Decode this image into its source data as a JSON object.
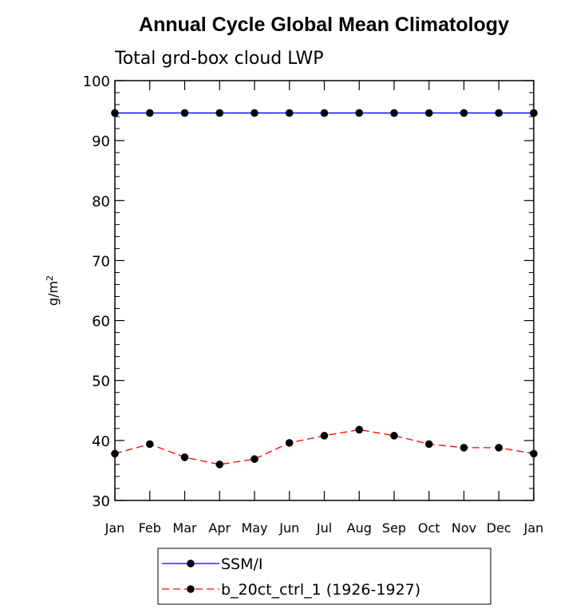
{
  "chart_data": {
    "type": "line",
    "title": "Annual Cycle Global Mean Climatology",
    "subtitle": "Total grd-box cloud LWP",
    "ylabel": "g/m",
    "ylabel_superscript": "2",
    "ylim": [
      30,
      100
    ],
    "y_ticks": [
      "30",
      "40",
      "50",
      "60",
      "70",
      "80",
      "90",
      "100"
    ],
    "categories": [
      "Jan",
      "Feb",
      "Mar",
      "Apr",
      "May",
      "Jun",
      "Jul",
      "Aug",
      "Sep",
      "Oct",
      "Nov",
      "Dec",
      "Jan"
    ],
    "series": [
      {
        "name": "SSM/I",
        "color": "#0000ff",
        "line_style": "solid",
        "values": [
          94.6,
          94.6,
          94.6,
          94.6,
          94.6,
          94.6,
          94.6,
          94.6,
          94.6,
          94.6,
          94.6,
          94.6,
          94.6
        ]
      },
      {
        "name": "b_20ct_ctrl_1 (1926-1927)",
        "color": "#ff0000",
        "line_style": "dashed",
        "values": [
          37.8,
          39.4,
          37.2,
          36.0,
          36.9,
          39.6,
          40.8,
          41.8,
          40.8,
          39.4,
          38.8,
          38.8,
          37.8
        ]
      }
    ],
    "legend_position": "bottom",
    "grid": false
  }
}
